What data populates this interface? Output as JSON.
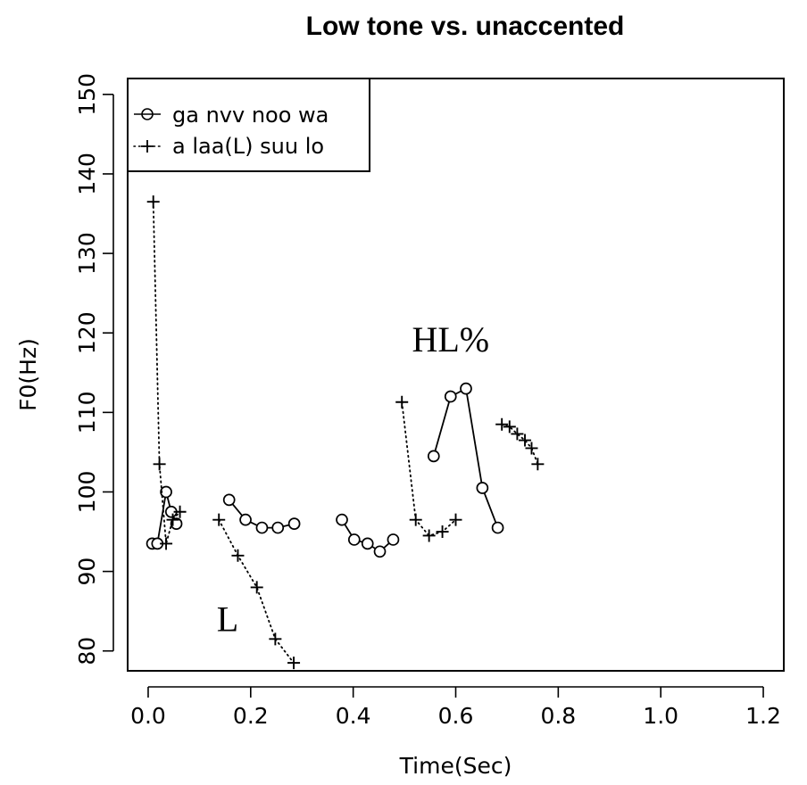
{
  "chart_data": {
    "type": "line",
    "title": "Low tone vs. unaccented",
    "xlabel": "Time(Sec)",
    "ylabel": "F0(Hz)",
    "xlim": [
      -0.04,
      1.24
    ],
    "ylim": [
      77.5,
      152
    ],
    "x_ticks": [
      0.0,
      0.2,
      0.4,
      0.6,
      0.8,
      1.0,
      1.2
    ],
    "x_tick_labels": [
      "0.0",
      "0.2",
      "0.4",
      "0.6",
      "0.8",
      "1.0",
      "1.2"
    ],
    "y_ticks": [
      80,
      90,
      100,
      110,
      120,
      130,
      140,
      150
    ],
    "y_tick_labels": [
      "80",
      "90",
      "100",
      "110",
      "120",
      "130",
      "140",
      "150"
    ],
    "grid": false,
    "legend_position": "top-left",
    "series": [
      {
        "name": "ga nvv noo wa",
        "marker": "circle",
        "line": "solid",
        "color": "#000000",
        "segments": [
          [
            [
              0.008,
              93.5
            ],
            [
              0.018,
              93.5
            ],
            [
              0.035,
              100.0
            ],
            [
              0.045,
              97.5
            ],
            [
              0.055,
              96.0
            ]
          ],
          [
            [
              0.158,
              99.0
            ],
            [
              0.19,
              96.5
            ],
            [
              0.222,
              95.5
            ],
            [
              0.253,
              95.5
            ],
            [
              0.285,
              96.0
            ]
          ],
          [
            [
              0.378,
              96.5
            ],
            [
              0.402,
              94.0
            ],
            [
              0.428,
              93.5
            ],
            [
              0.452,
              92.5
            ],
            [
              0.478,
              94.0
            ]
          ],
          [
            [
              0.557,
              104.5
            ],
            [
              0.59,
              112.0
            ],
            [
              0.62,
              113.0
            ],
            [
              0.652,
              100.5
            ],
            [
              0.682,
              95.5
            ]
          ]
        ]
      },
      {
        "name": "a laa(L) suu lo",
        "marker": "plus",
        "line": "dotted",
        "color": "#000000",
        "segments": [
          [
            [
              0.01,
              136.5
            ],
            [
              0.022,
              103.5
            ],
            [
              0.035,
              93.5
            ],
            [
              0.048,
              96.5
            ],
            [
              0.062,
              97.5
            ]
          ],
          [
            [
              0.138,
              96.5
            ],
            [
              0.175,
              92.0
            ],
            [
              0.212,
              88.0
            ],
            [
              0.248,
              81.5
            ],
            [
              0.284,
              78.5
            ]
          ],
          [
            [
              0.495,
              111.3
            ],
            [
              0.522,
              96.5
            ],
            [
              0.548,
              94.5
            ],
            [
              0.574,
              95.0
            ],
            [
              0.6,
              96.5
            ]
          ],
          [
            [
              0.69,
              108.5
            ],
            [
              0.705,
              108.2
            ],
            [
              0.72,
              107.3
            ],
            [
              0.735,
              106.5
            ],
            [
              0.748,
              105.5
            ],
            [
              0.76,
              103.5
            ]
          ]
        ]
      }
    ],
    "annotations": [
      {
        "text": "HL%",
        "x": 0.59,
        "y": 118.7
      },
      {
        "text": "L",
        "x": 0.155,
        "y": 83.5
      }
    ]
  }
}
